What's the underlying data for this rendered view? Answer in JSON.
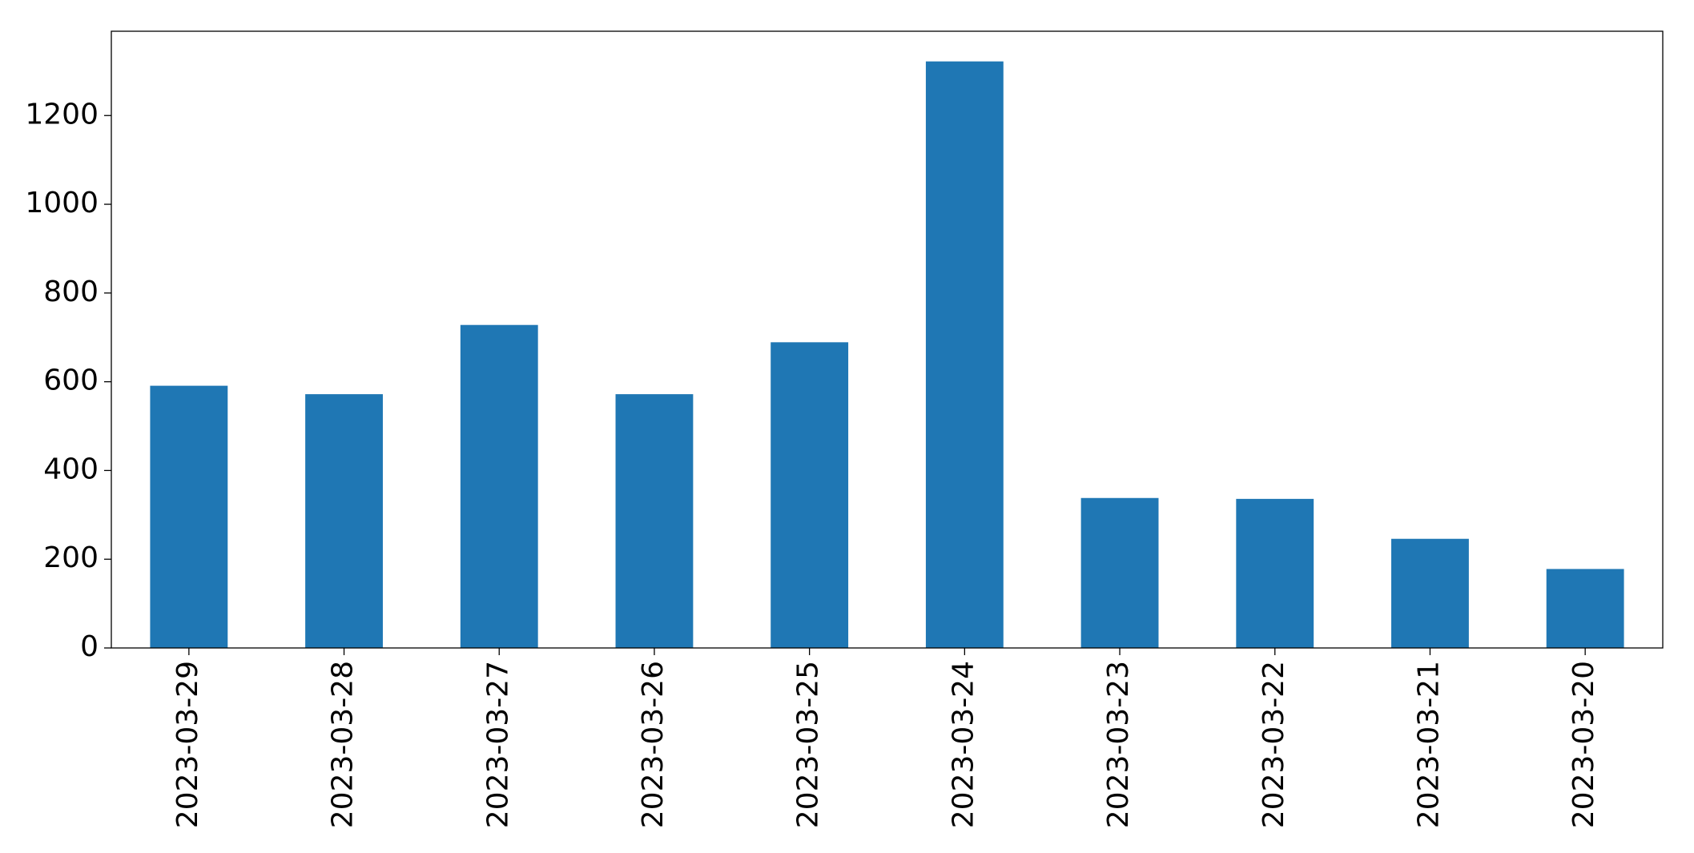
{
  "chart_data": {
    "type": "bar",
    "categories": [
      "2023-03-29",
      "2023-03-28",
      "2023-03-27",
      "2023-03-26",
      "2023-03-25",
      "2023-03-24",
      "2023-03-23",
      "2023-03-22",
      "2023-03-21",
      "2023-03-20"
    ],
    "values": [
      591,
      572,
      728,
      572,
      689,
      1322,
      338,
      336,
      246,
      178
    ],
    "color": "#1f77b4",
    "ylim": [
      0,
      1390
    ],
    "yticks": [
      0,
      200,
      400,
      600,
      800,
      1000,
      1200
    ],
    "grid": false
  }
}
